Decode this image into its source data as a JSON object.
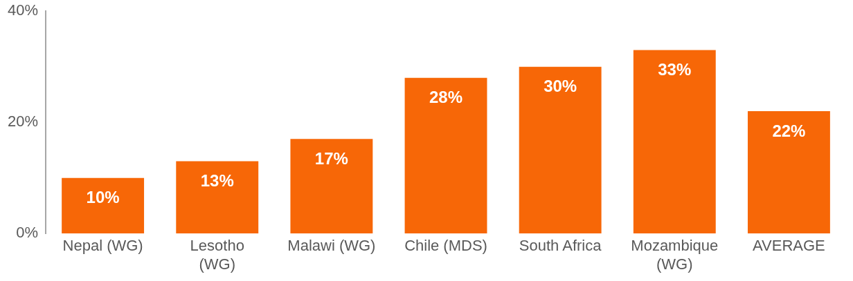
{
  "chart_data": {
    "type": "bar",
    "categories": [
      "Nepal (WG)",
      "Lesotho\n(WG)",
      "Malawi (WG)",
      "Chile (MDS)",
      "South Africa",
      "Mozambique\n(WG)",
      "AVERAGE"
    ],
    "values": [
      10,
      13,
      17,
      28,
      30,
      33,
      22
    ],
    "color": "#f76707",
    "ylim": [
      0,
      40
    ],
    "yticks": [
      {
        "value": 0,
        "label": "0%"
      },
      {
        "value": 20,
        "label": "20%"
      },
      {
        "value": 40,
        "label": "40%"
      }
    ],
    "grid": false,
    "legend": false,
    "data_labels": true,
    "value_labels": [
      "10%",
      "13%",
      "17%",
      "28%",
      "30%",
      "33%",
      "22%"
    ]
  }
}
